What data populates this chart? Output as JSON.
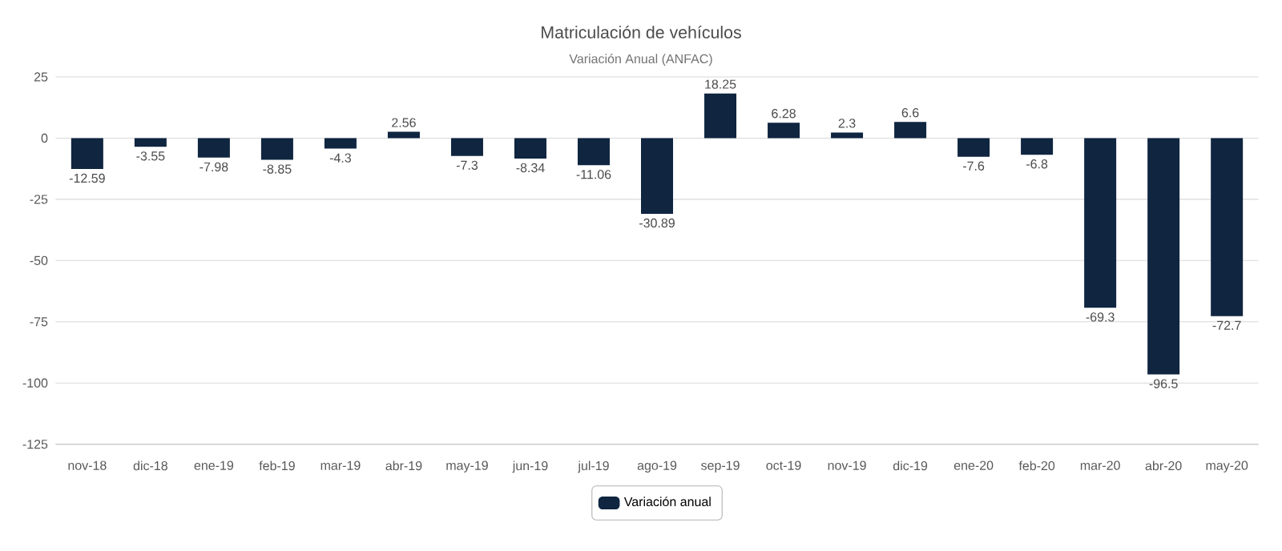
{
  "chart_data": {
    "type": "bar",
    "title": "Matriculación de vehículos",
    "subtitle": "Variación Anual (ANFAC)",
    "categories": [
      "nov-18",
      "dic-18",
      "ene-19",
      "feb-19",
      "mar-19",
      "abr-19",
      "may-19",
      "jun-19",
      "jul-19",
      "ago-19",
      "sep-19",
      "oct-19",
      "nov-19",
      "dic-19",
      "ene-20",
      "feb-20",
      "mar-20",
      "abr-20",
      "may-20"
    ],
    "series": [
      {
        "name": "Variación anual",
        "color": "#0f2540",
        "values": [
          -12.59,
          -3.55,
          -7.98,
          -8.85,
          -4.3,
          2.56,
          -7.3,
          -8.34,
          -11.06,
          -30.89,
          18.25,
          6.28,
          2.3,
          6.6,
          -7.6,
          -6.8,
          -69.3,
          -96.5,
          -72.7
        ]
      }
    ],
    "ylim": [
      -125,
      25
    ],
    "yticks": [
      -125,
      -100,
      -75,
      -50,
      -25,
      0,
      25
    ],
    "grid": "y",
    "legend": "bottom",
    "data_labels": true
  }
}
